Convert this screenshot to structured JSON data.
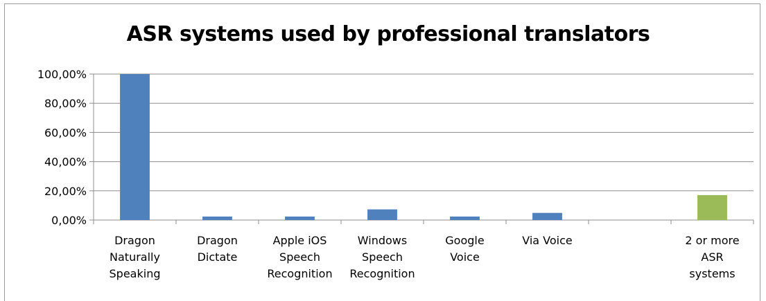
{
  "chart_data": {
    "type": "bar",
    "title": "ASR systems used by professional translators",
    "xlabel": "",
    "ylabel": "",
    "categories": [
      [
        "Dragon",
        "Naturally",
        "Speaking"
      ],
      [
        "Dragon",
        "Dictate"
      ],
      [
        "Apple iOS",
        "Speech",
        "Recognition"
      ],
      [
        "Windows",
        "Speech",
        "Recognition"
      ],
      [
        "Google",
        "Voice"
      ],
      [
        "Via Voice"
      ],
      [],
      [
        "2 or more",
        "ASR",
        "systems"
      ]
    ],
    "values": [
      1.0,
      0.024,
      0.024,
      0.073,
      0.024,
      0.049,
      0,
      0.171
    ],
    "bar_colors": [
      "#4f81bd",
      "#4f81bd",
      "#4f81bd",
      "#4f81bd",
      "#4f81bd",
      "#4f81bd",
      "#4f81bd",
      "#9bbb59"
    ],
    "ylim": [
      0,
      1.0
    ],
    "yticks": [
      "0,00%",
      "20,00%",
      "40,00%",
      "60,00%",
      "80,00%",
      "100,00%"
    ],
    "grid": true,
    "legend": "none"
  }
}
